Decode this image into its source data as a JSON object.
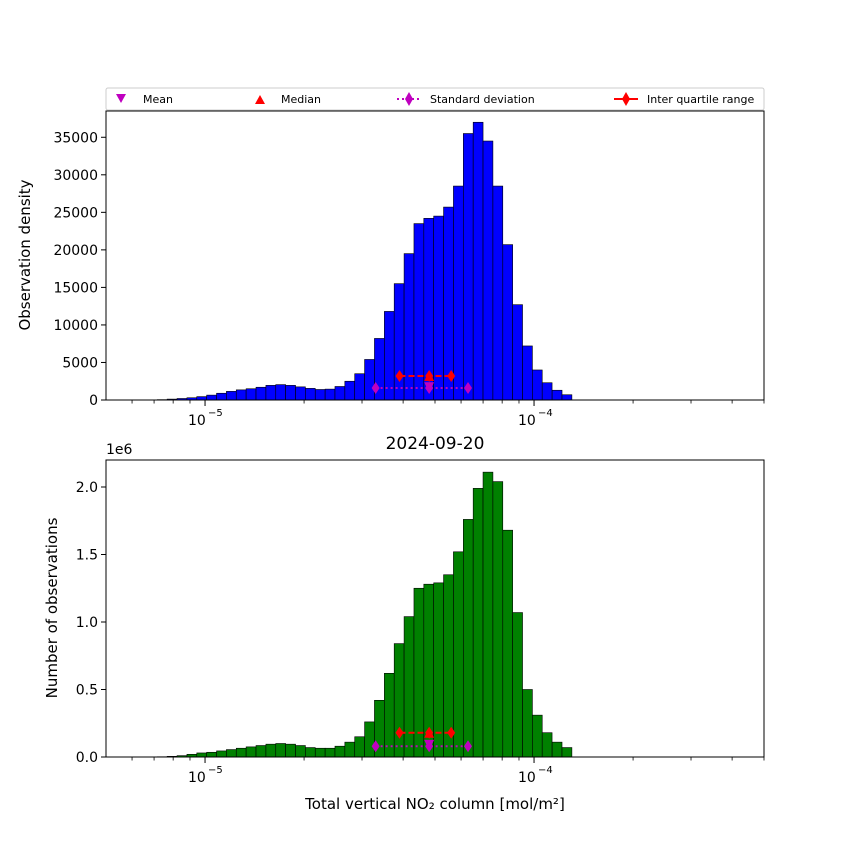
{
  "chart_data": {
    "type": "bar",
    "title": "2024-09-20",
    "xlabel": "Total vertical NO₂ column [mol/m²]",
    "xscale": "log",
    "xlim": [
      5e-06,
      0.0005
    ],
    "x_tick_labels": [
      "10",
      "−5",
      "10",
      "−4"
    ],
    "legend": {
      "placement": "top",
      "entries": [
        "Mean",
        "Median",
        "Standard deviation",
        "Inter quartile range"
      ],
      "colors": {
        "mean": "#bf00bf",
        "median": "#ff0000",
        "std": "#bf00bf",
        "iqr": "#ff0000"
      }
    },
    "panels": [
      {
        "name": "top",
        "ylabel": "Observation density",
        "ylim": [
          0,
          38500
        ],
        "yticks": [
          0,
          5000,
          10000,
          15000,
          20000,
          25000,
          30000,
          35000
        ],
        "ytick_labels": [
          "0",
          "5000",
          "10000",
          "15000",
          "20000",
          "25000",
          "30000",
          "35000"
        ],
        "bar_color": "#0000ff",
        "bin_centers": [
          7.41e-06,
          7.94e-06,
          8.51e-06,
          9.12e-06,
          9.77e-06,
          1.047e-05,
          1.122e-05,
          1.202e-05,
          1.288e-05,
          1.38e-05,
          1.479e-05,
          1.585e-05,
          1.698e-05,
          1.82e-05,
          1.95e-05,
          2.089e-05,
          2.239e-05,
          2.399e-05,
          2.57e-05,
          2.754e-05,
          2.951e-05,
          3.162e-05,
          3.388e-05,
          3.631e-05,
          3.89e-05,
          4.169e-05,
          4.467e-05,
          4.786e-05,
          5.129e-05,
          5.495e-05,
          5.888e-05,
          6.31e-05,
          6.761e-05,
          7.244e-05,
          7.762e-05,
          8.318e-05,
          8.913e-05,
          9.55e-05,
          0.0001023,
          0.0001096,
          0.0001175,
          0.0001259
        ],
        "values": [
          50,
          120,
          200,
          300,
          450,
          650,
          900,
          1150,
          1350,
          1500,
          1700,
          1950,
          2050,
          1950,
          1750,
          1550,
          1400,
          1450,
          1800,
          2500,
          3500,
          5400,
          8200,
          11800,
          15500,
          19500,
          23500,
          24200,
          24500,
          25700,
          28500,
          35500,
          37000,
          34500,
          28500,
          20700,
          12700,
          7200,
          4000,
          2300,
          1300,
          700
        ],
        "markers": {
          "mean": {
            "x": 4.8e-05,
            "y": 1700
          },
          "median": {
            "x": 4.8e-05,
            "y": 3200
          },
          "std": {
            "x": [
              3.3e-05,
              4.8e-05,
              6.3e-05
            ],
            "y": 1600
          },
          "iqr": {
            "x": [
              3.9e-05,
              4.8e-05,
              5.6e-05
            ],
            "y": 3200
          }
        }
      },
      {
        "name": "bottom",
        "ylabel": "Number of observations",
        "offset_label": "1e6",
        "ylim": [
          0,
          2.2
        ],
        "yticks": [
          0.0,
          0.5,
          1.0,
          1.5,
          2.0
        ],
        "ytick_labels": [
          "0.0",
          "0.5",
          "1.0",
          "1.5",
          "2.0"
        ],
        "bar_color": "#008000",
        "bin_centers": [
          7.41e-06,
          7.94e-06,
          8.51e-06,
          9.12e-06,
          9.77e-06,
          1.047e-05,
          1.122e-05,
          1.202e-05,
          1.288e-05,
          1.38e-05,
          1.479e-05,
          1.585e-05,
          1.698e-05,
          1.82e-05,
          1.95e-05,
          2.089e-05,
          2.239e-05,
          2.399e-05,
          2.57e-05,
          2.754e-05,
          2.951e-05,
          3.162e-05,
          3.388e-05,
          3.631e-05,
          3.89e-05,
          4.169e-05,
          4.467e-05,
          4.786e-05,
          5.129e-05,
          5.495e-05,
          5.888e-05,
          6.31e-05,
          6.761e-05,
          7.244e-05,
          7.762e-05,
          8.318e-05,
          8.913e-05,
          9.55e-05,
          0.0001023,
          0.0001096,
          0.0001175,
          0.0001259
        ],
        "values": [
          0.002,
          0.005,
          0.01,
          0.02,
          0.03,
          0.035,
          0.045,
          0.055,
          0.065,
          0.075,
          0.085,
          0.095,
          0.1,
          0.095,
          0.085,
          0.07,
          0.065,
          0.065,
          0.08,
          0.11,
          0.15,
          0.26,
          0.42,
          0.62,
          0.84,
          1.04,
          1.25,
          1.28,
          1.29,
          1.35,
          1.52,
          1.76,
          1.99,
          2.11,
          2.04,
          1.68,
          1.07,
          0.5,
          0.31,
          0.18,
          0.11,
          0.07
        ],
        "markers": {
          "mean": {
            "x": 4.8e-05,
            "y": 0.09
          },
          "median": {
            "x": 4.8e-05,
            "y": 0.18
          },
          "std": {
            "x": [
              3.3e-05,
              4.8e-05,
              6.3e-05
            ],
            "y": 0.08
          },
          "iqr": {
            "x": [
              3.9e-05,
              4.8e-05,
              5.6e-05
            ],
            "y": 0.18
          }
        }
      }
    ]
  }
}
